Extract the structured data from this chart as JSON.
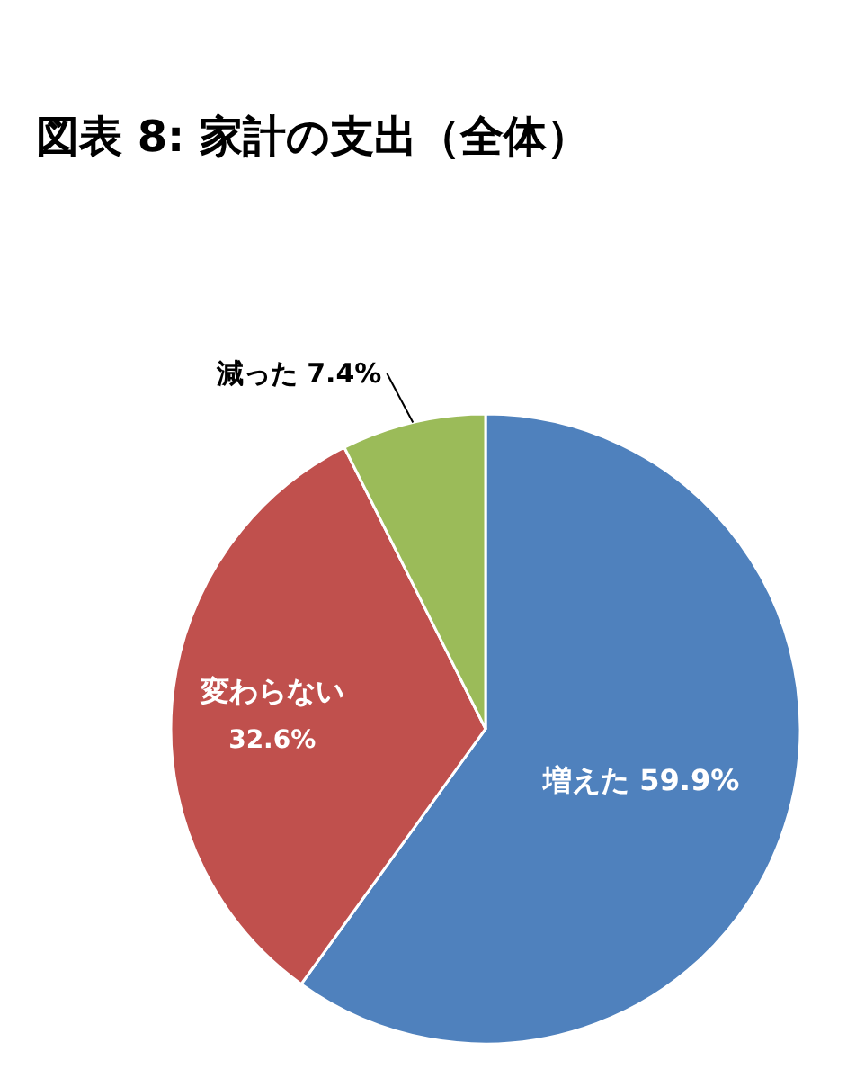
{
  "chart_data": {
    "type": "pie",
    "title": "図表 8: 家計の支出（全体）",
    "categories": [
      "増えた",
      "変わらない",
      "減った"
    ],
    "values": [
      59.9,
      32.6,
      7.4
    ],
    "value_labels": [
      "59.9%",
      "32.6%",
      "7.4%"
    ],
    "colors": [
      "#4f81bd",
      "#c0504d",
      "#9bbb59"
    ]
  }
}
